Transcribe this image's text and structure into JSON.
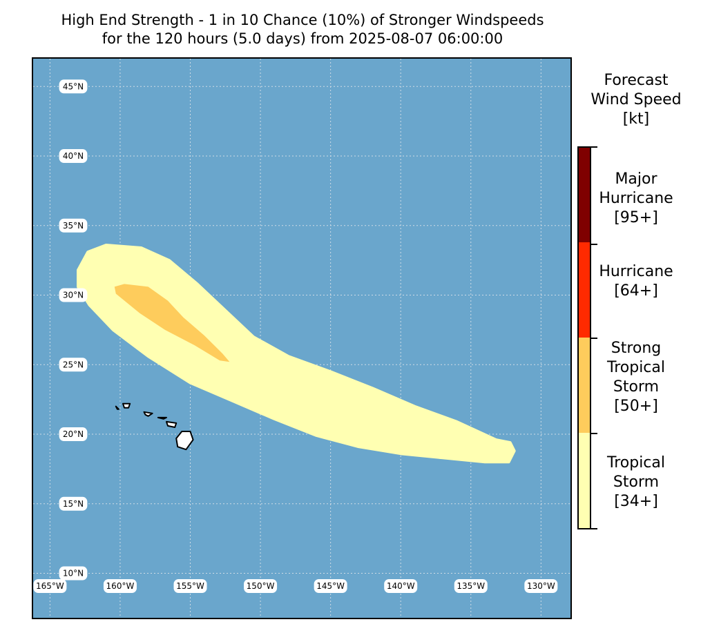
{
  "title": {
    "line1": "High End Strength - 1 in 10 Chance (10%) of Stronger Windspeeds",
    "line2": "for the 120 hours (5.0 days) from 2025-08-07 06:00:00"
  },
  "map": {
    "ocean_color": "#6aa6cc",
    "land_color": "#ffffff",
    "lat_labels": [
      "45°N",
      "40°N",
      "35°N",
      "30°N",
      "25°N",
      "20°N",
      "15°N",
      "10°N"
    ],
    "lon_labels": [
      "165°W",
      "160°W",
      "155°W",
      "150°W",
      "145°W",
      "140°W",
      "135°W",
      "130°W"
    ],
    "lat_values": [
      45,
      40,
      35,
      30,
      25,
      20,
      15,
      10
    ],
    "lon_values": [
      -165,
      -160,
      -155,
      -150,
      -145,
      -140,
      -135,
      -130
    ],
    "extent": {
      "lon_min": -166.2,
      "lon_max": -127.9,
      "lat_min": 6.8,
      "lat_max": 47.0
    },
    "swath": {
      "tropical_storm_color": "#ffffb2",
      "strong_tropical_storm_color": "#fecc5c",
      "tropical_storm_outline": [
        [
          -163.0,
          31.8
        ],
        [
          -162.3,
          33.1
        ],
        [
          -161.0,
          33.6
        ],
        [
          -158.5,
          33.4
        ],
        [
          -156.5,
          32.5
        ],
        [
          -154.5,
          30.8
        ],
        [
          -152.5,
          28.9
        ],
        [
          -150.5,
          27.0
        ],
        [
          -148.0,
          25.6
        ],
        [
          -145.0,
          24.5
        ],
        [
          -142.0,
          23.3
        ],
        [
          -139.0,
          22.0
        ],
        [
          -136.0,
          20.9
        ],
        [
          -133.2,
          19.6
        ],
        [
          -132.2,
          19.4
        ],
        [
          -131.9,
          18.8
        ],
        [
          -132.3,
          18.0
        ],
        [
          -134.0,
          18.0
        ],
        [
          -137.0,
          18.3
        ],
        [
          -140.0,
          18.6
        ],
        [
          -143.0,
          19.1
        ],
        [
          -146.0,
          19.9
        ],
        [
          -149.0,
          21.1
        ],
        [
          -152.0,
          22.4
        ],
        [
          -155.0,
          23.7
        ],
        [
          -158.0,
          25.6
        ],
        [
          -160.5,
          27.5
        ],
        [
          -162.2,
          29.3
        ],
        [
          -163.0,
          30.6
        ]
      ],
      "strong_tropical_storm_outline": [
        [
          -160.4,
          30.6
        ],
        [
          -159.7,
          30.8
        ],
        [
          -158.0,
          30.6
        ],
        [
          -156.6,
          29.6
        ],
        [
          -155.5,
          28.4
        ],
        [
          -154.0,
          27.1
        ],
        [
          -152.7,
          25.8
        ],
        [
          -152.2,
          25.2
        ],
        [
          -152.9,
          25.3
        ],
        [
          -154.7,
          26.4
        ],
        [
          -156.8,
          27.5
        ],
        [
          -158.6,
          28.7
        ],
        [
          -160.3,
          30.1
        ]
      ]
    },
    "islands": [
      [
        [
          -155.6,
          20.2
        ],
        [
          -155.0,
          20.2
        ],
        [
          -154.8,
          19.6
        ],
        [
          -155.3,
          18.9
        ],
        [
          -155.9,
          19.1
        ],
        [
          -156.0,
          19.7
        ]
      ],
      [
        [
          -156.7,
          20.9
        ],
        [
          -156.0,
          20.8
        ],
        [
          -156.1,
          20.5
        ],
        [
          -156.6,
          20.6
        ]
      ],
      [
        [
          -157.3,
          21.2
        ],
        [
          -156.7,
          21.2
        ],
        [
          -156.9,
          21.1
        ]
      ],
      [
        [
          -158.3,
          21.6
        ],
        [
          -157.7,
          21.5
        ],
        [
          -158.0,
          21.3
        ],
        [
          -158.2,
          21.4
        ]
      ],
      [
        [
          -159.8,
          22.2
        ],
        [
          -159.3,
          22.2
        ],
        [
          -159.4,
          21.9
        ],
        [
          -159.7,
          21.9
        ]
      ],
      [
        [
          -160.3,
          22.0
        ],
        [
          -160.1,
          21.8
        ],
        [
          -160.2,
          21.8
        ]
      ]
    ]
  },
  "legend": {
    "title_line1": "Forecast",
    "title_line2": "Wind Speed",
    "title_line3": "[kt]",
    "categories": [
      {
        "name": "Major Hurricane",
        "line1": "Major",
        "line2": "Hurricane",
        "threshold": "[95+]",
        "color": "#7f0000"
      },
      {
        "name": "Hurricane",
        "line1": "Hurricane",
        "threshold": "[64+]",
        "color": "#ff2a00"
      },
      {
        "name": "Strong Tropical Storm",
        "line1": "Strong",
        "line2": "Tropical",
        "line3": "Storm",
        "threshold": "[50+]",
        "color": "#fecc5c"
      },
      {
        "name": "Tropical Storm",
        "line1": "Tropical",
        "line2": "Storm",
        "threshold": "[34+]",
        "color": "#ffffb2"
      }
    ]
  }
}
